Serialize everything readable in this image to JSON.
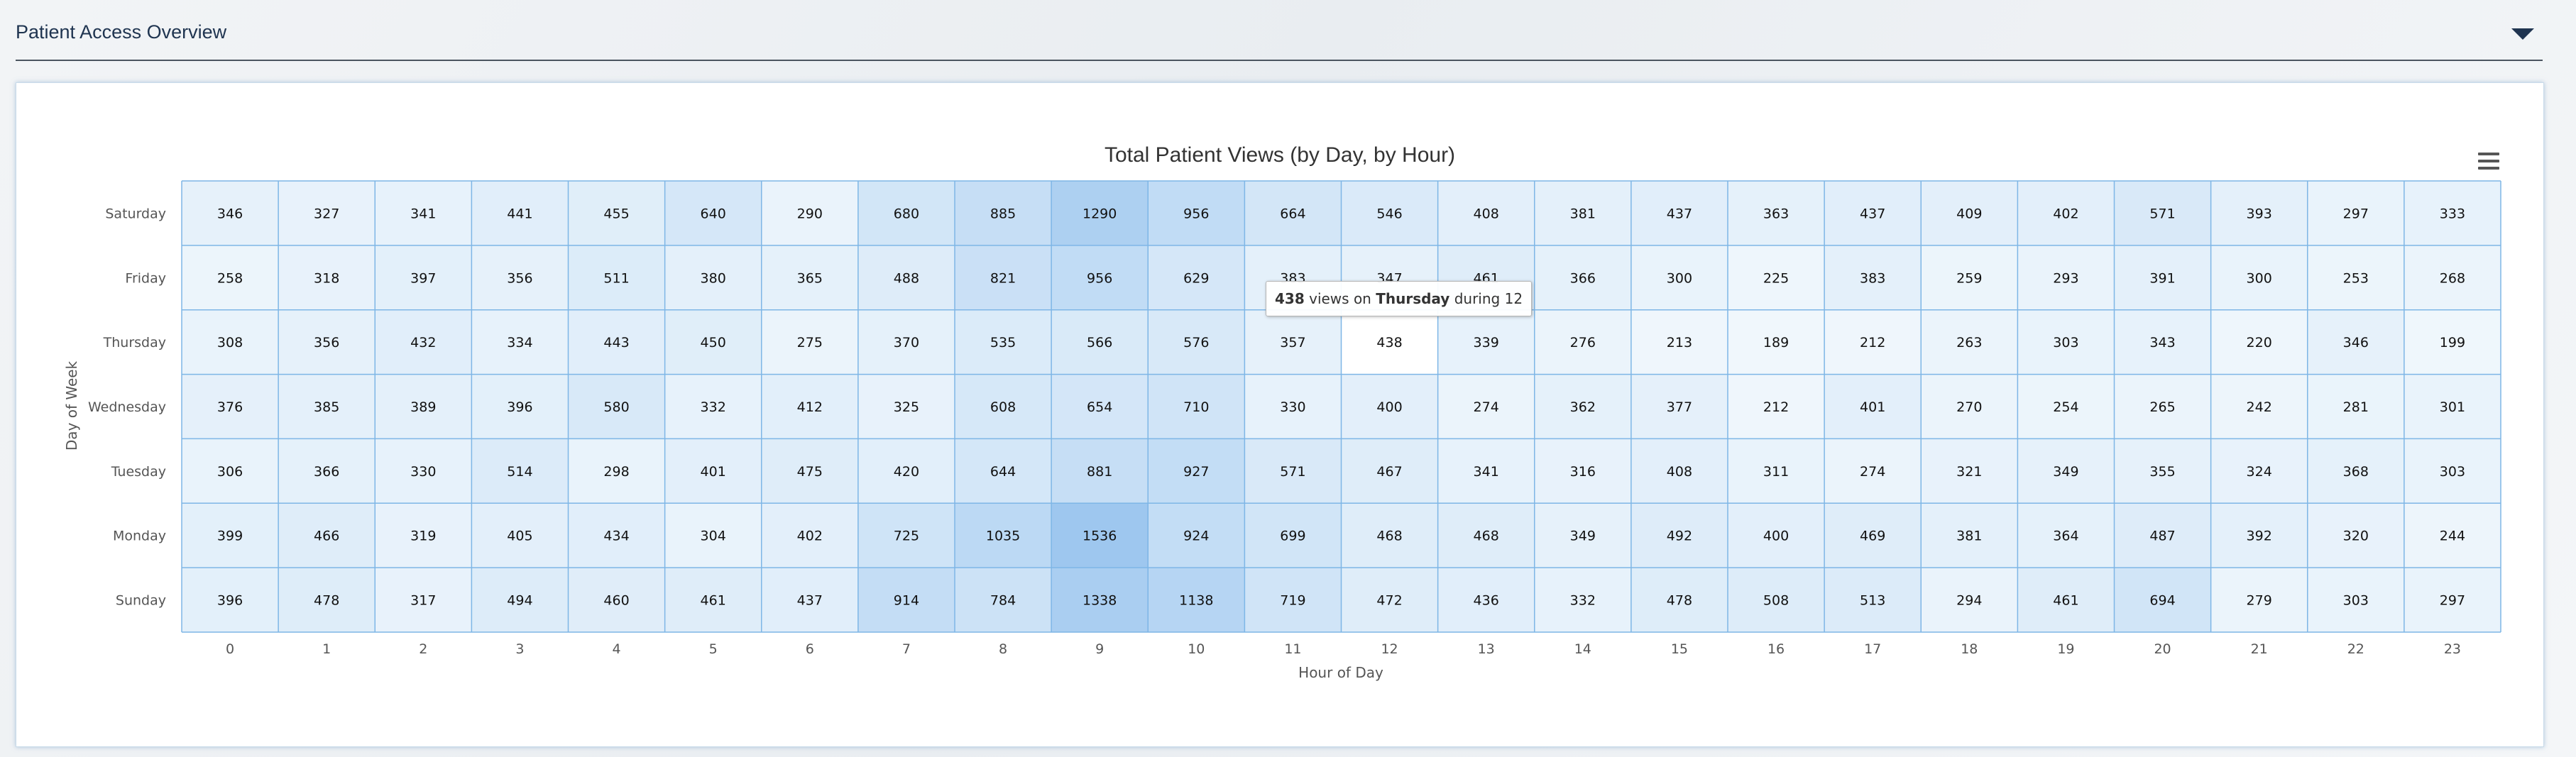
{
  "panel": {
    "title": "Patient Access Overview"
  },
  "icons": {
    "collapse": "caret-down-icon",
    "menu": "hamburger-menu-icon"
  },
  "colors": {
    "min": "#f0f7fc",
    "max": "#9ec7ef",
    "grid": "#7eb6e6",
    "highlight": "#ffffff"
  },
  "chart_data": {
    "type": "heatmap",
    "title": "Total Patient Views (by Day, by Hour)",
    "xlabel": "Hour of Day",
    "ylabel": "Day of Week",
    "x_categories": [
      "0",
      "1",
      "2",
      "3",
      "4",
      "5",
      "6",
      "7",
      "8",
      "9",
      "10",
      "11",
      "12",
      "13",
      "14",
      "15",
      "16",
      "17",
      "18",
      "19",
      "20",
      "21",
      "22",
      "23"
    ],
    "y_categories": [
      "Saturday",
      "Friday",
      "Thursday",
      "Wednesday",
      "Tuesday",
      "Monday",
      "Sunday"
    ],
    "values": [
      [
        346,
        327,
        341,
        441,
        455,
        640,
        290,
        680,
        885,
        1290,
        956,
        664,
        546,
        408,
        381,
        437,
        363,
        437,
        409,
        402,
        571,
        393,
        297,
        333
      ],
      [
        258,
        318,
        397,
        356,
        511,
        380,
        365,
        488,
        821,
        956,
        629,
        383,
        347,
        461,
        366,
        300,
        225,
        383,
        259,
        293,
        391,
        300,
        253,
        268
      ],
      [
        308,
        356,
        432,
        334,
        443,
        450,
        275,
        370,
        535,
        566,
        576,
        357,
        438,
        339,
        276,
        213,
        189,
        212,
        263,
        303,
        343,
        220,
        346,
        199
      ],
      [
        376,
        385,
        389,
        396,
        580,
        332,
        412,
        325,
        608,
        654,
        710,
        330,
        400,
        274,
        362,
        377,
        212,
        401,
        270,
        254,
        265,
        242,
        281,
        301
      ],
      [
        306,
        366,
        330,
        514,
        298,
        401,
        475,
        420,
        644,
        881,
        927,
        571,
        467,
        341,
        316,
        408,
        311,
        274,
        321,
        349,
        355,
        324,
        368,
        303
      ],
      [
        399,
        466,
        319,
        405,
        434,
        304,
        402,
        725,
        1035,
        1536,
        924,
        699,
        468,
        468,
        349,
        492,
        400,
        469,
        381,
        364,
        487,
        392,
        320,
        244
      ],
      [
        396,
        478,
        317,
        494,
        460,
        461,
        437,
        914,
        784,
        1338,
        1138,
        719,
        472,
        436,
        332,
        478,
        508,
        513,
        294,
        461,
        694,
        279,
        303,
        297
      ]
    ],
    "highlighted_cell": {
      "row": 2,
      "col": 12
    },
    "tooltip": {
      "value": "438",
      "text1": "views on",
      "day": "Thursday",
      "text2": "during",
      "hour": "12"
    }
  }
}
